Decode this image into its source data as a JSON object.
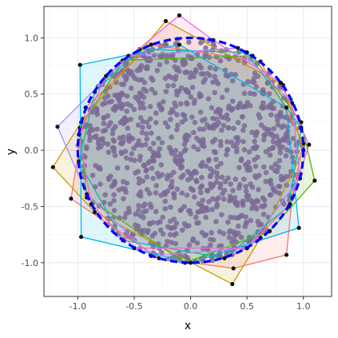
{
  "chart_data": {
    "type": "scatter",
    "xlabel": "x",
    "ylabel": "y",
    "xlim": [
      -1.3,
      1.25
    ],
    "ylim": [
      -1.3,
      1.28
    ],
    "x_ticks": [
      -1.0,
      -0.5,
      0.0,
      0.5,
      1.0
    ],
    "y_ticks": [
      -1.0,
      -0.5,
      0.0,
      0.5,
      1.0
    ],
    "x_tick_labels": [
      "-1.0",
      "-0.5",
      "0.0",
      "0.5",
      "1.0"
    ],
    "y_tick_labels": [
      "-1.0",
      "-0.5",
      "0.0",
      "0.5",
      "1.0"
    ],
    "grid": true,
    "theme": "bw",
    "points": {
      "description": "points sampled uniformly inside the unit disk",
      "count": 1000,
      "radius": 1.0,
      "color": "#7b6a96"
    },
    "unit_circle": {
      "radius": 1.0,
      "color": "#0000ff",
      "linetype": "dashed"
    },
    "polygons": [
      {
        "color": "#F8766D",
        "vertices": [
          [
            -0.93,
            0.38
          ],
          [
            -0.35,
            0.94
          ],
          [
            0.62,
            0.79
          ],
          [
            1.0,
            0.06
          ],
          [
            0.9,
            -0.42
          ],
          [
            0.85,
            -0.93
          ],
          [
            0.38,
            -1.05
          ],
          [
            -0.28,
            -0.96
          ],
          [
            -1.06,
            -0.43
          ]
        ]
      },
      {
        "color": "#C49A00",
        "vertices": [
          [
            -0.22,
            1.15
          ],
          [
            0.82,
            0.58
          ],
          [
            1.0,
            0.0
          ],
          [
            0.62,
            -0.78
          ],
          [
            0.37,
            -1.19
          ],
          [
            -0.85,
            -0.55
          ],
          [
            -1.22,
            -0.15
          ],
          [
            -0.97,
            0.25
          ]
        ]
      },
      {
        "color": "#53B400",
        "vertices": [
          [
            -0.6,
            0.8
          ],
          [
            0.55,
            0.84
          ],
          [
            0.98,
            0.25
          ],
          [
            1.1,
            -0.27
          ],
          [
            0.7,
            -0.72
          ],
          [
            -0.05,
            -1.0
          ],
          [
            -0.92,
            -0.42
          ],
          [
            -0.98,
            0.2
          ]
        ]
      },
      {
        "color": "#00C094",
        "vertices": [
          [
            -0.45,
            0.9
          ],
          [
            0.5,
            0.87
          ],
          [
            0.98,
            0.2
          ],
          [
            0.87,
            -0.5
          ],
          [
            0.3,
            -0.96
          ],
          [
            -0.6,
            -0.8
          ],
          [
            -0.99,
            -0.1
          ],
          [
            -0.85,
            0.52
          ]
        ]
      },
      {
        "color": "#00B6EB",
        "vertices": [
          [
            -0.98,
            0.76
          ],
          [
            -0.1,
            0.94
          ],
          [
            0.85,
            0.38
          ],
          [
            0.96,
            -0.69
          ],
          [
            0.0,
            -1.0
          ],
          [
            -0.97,
            -0.77
          ]
        ]
      },
      {
        "color": "#A58AFF",
        "vertices": [
          [
            -1.18,
            0.21
          ],
          [
            -0.55,
            0.84
          ],
          [
            0.42,
            0.91
          ],
          [
            0.9,
            0.42
          ],
          [
            0.97,
            -0.25
          ],
          [
            0.5,
            -0.87
          ],
          [
            -0.35,
            -0.94
          ],
          [
            -0.92,
            -0.39
          ]
        ]
      },
      {
        "color": "#FB61D7",
        "vertices": [
          [
            -0.1,
            1.2
          ],
          [
            0.2,
            0.98
          ],
          [
            0.8,
            0.6
          ],
          [
            1.05,
            0.05
          ],
          [
            0.88,
            -0.48
          ],
          [
            0.5,
            -0.87
          ],
          [
            -0.5,
            -0.87
          ],
          [
            -0.88,
            -0.48
          ],
          [
            -0.99,
            0.14
          ],
          [
            -0.75,
            0.66
          ]
        ]
      }
    ]
  }
}
